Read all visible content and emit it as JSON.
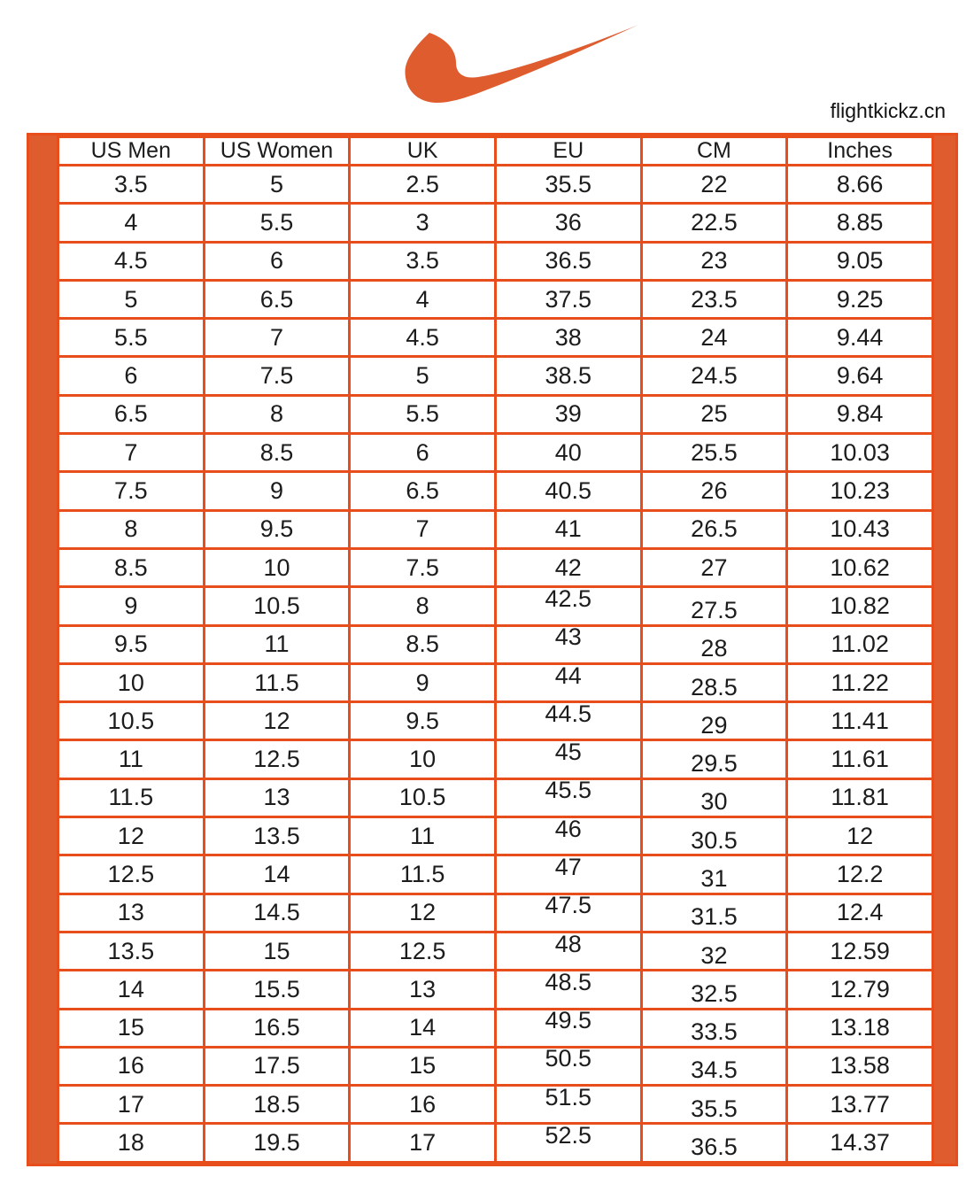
{
  "header": {
    "watermark": "flightkickz.cn"
  },
  "colors": {
    "accent": "#DE5C2E",
    "grid": "#E74E1C",
    "text": "#1c1c1c",
    "background": "#ffffff"
  },
  "chart_data": {
    "type": "table",
    "columns": [
      "US Men",
      "US Women",
      "UK",
      "EU",
      "CM",
      "Inches"
    ],
    "rows": [
      [
        "3.5",
        "5",
        "2.5",
        "35.5",
        "22",
        "8.66"
      ],
      [
        "4",
        "5.5",
        "3",
        "36",
        "22.5",
        "8.85"
      ],
      [
        "4.5",
        "6",
        "3.5",
        "36.5",
        "23",
        "9.05"
      ],
      [
        "5",
        "6.5",
        "4",
        "37.5",
        "23.5",
        "9.25"
      ],
      [
        "5.5",
        "7",
        "4.5",
        "38",
        "24",
        "9.44"
      ],
      [
        "6",
        "7.5",
        "5",
        "38.5",
        "24.5",
        "9.64"
      ],
      [
        "6.5",
        "8",
        "5.5",
        "39",
        "25",
        "9.84"
      ],
      [
        "7",
        "8.5",
        "6",
        "40",
        "25.5",
        "10.03"
      ],
      [
        "7.5",
        "9",
        "6.5",
        "40.5",
        "26",
        "10.23"
      ],
      [
        "8",
        "9.5",
        "7",
        "41",
        "26.5",
        "10.43"
      ],
      [
        "8.5",
        "10",
        "7.5",
        "42",
        "27",
        "10.62"
      ],
      [
        "9",
        "10.5",
        "8",
        "42.5",
        "27.5",
        "10.82"
      ],
      [
        "9.5",
        "11",
        "8.5",
        "43",
        "28",
        "11.02"
      ],
      [
        "10",
        "11.5",
        "9",
        "44",
        "28.5",
        "11.22"
      ],
      [
        "10.5",
        "12",
        "9.5",
        "44.5",
        "29",
        "11.41"
      ],
      [
        "11",
        "12.5",
        "10",
        "45",
        "29.5",
        "11.61"
      ],
      [
        "11.5",
        "13",
        "10.5",
        "45.5",
        "30",
        "11.81"
      ],
      [
        "12",
        "13.5",
        "11",
        "46",
        "30.5",
        "12"
      ],
      [
        "12.5",
        "14",
        "11.5",
        "47",
        "31",
        "12.2"
      ],
      [
        "13",
        "14.5",
        "12",
        "47.5",
        "31.5",
        "12.4"
      ],
      [
        "13.5",
        "15",
        "12.5",
        "48",
        "32",
        "12.59"
      ],
      [
        "14",
        "15.5",
        "13",
        "48.5",
        "32.5",
        "12.79"
      ],
      [
        "15",
        "16.5",
        "14",
        "49.5",
        "33.5",
        "13.18"
      ],
      [
        "16",
        "17.5",
        "15",
        "50.5",
        "34.5",
        "13.58"
      ],
      [
        "17",
        "18.5",
        "16",
        "51.5",
        "35.5",
        "13.77"
      ],
      [
        "18",
        "19.5",
        "17",
        "52.5",
        "36.5",
        "14.37"
      ]
    ]
  }
}
